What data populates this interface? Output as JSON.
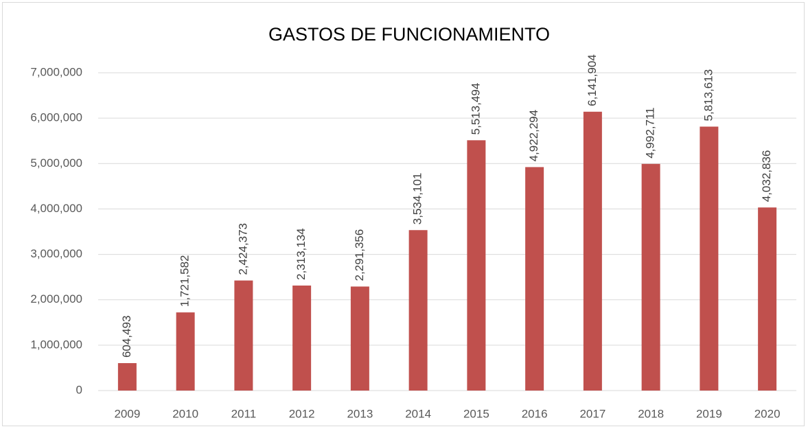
{
  "chart_data": {
    "type": "bar",
    "title": "GASTOS DE FUNCIONAMIENTO",
    "categories": [
      "2009",
      "2010",
      "2011",
      "2012",
      "2013",
      "2014",
      "2015",
      "2016",
      "2017",
      "2018",
      "2019",
      "2020"
    ],
    "values": [
      604493,
      1721582,
      2424373,
      2313134,
      2291356,
      3534101,
      5513494,
      4922294,
      6141904,
      4992711,
      5813613,
      4032836
    ],
    "value_labels": [
      "604,493",
      "1,721,582",
      "2,424,373",
      "2,313,134",
      "2,291,356",
      "3,534,101",
      "5,513,494",
      "4,922,294",
      "6,141,904",
      "4,992,711",
      "5,813,613",
      "4,032,836"
    ],
    "color": "#c0504d",
    "ylim": [
      0,
      7000000
    ],
    "yticks": [
      0,
      {
        "value": 1000000,
        "label": "1,000,000"
      },
      {
        "value": 2000000,
        "label": "2,000,000"
      },
      {
        "value": 3000000,
        "label": "3,000,000"
      },
      {
        "value": 4000000,
        "label": "4,000,000"
      },
      {
        "value": 5000000,
        "label": "5,000,000"
      },
      {
        "value": 6000000,
        "label": "6,000,000"
      },
      {
        "value": 7000000,
        "label": "7,000,000"
      }
    ],
    "grid": true
  }
}
